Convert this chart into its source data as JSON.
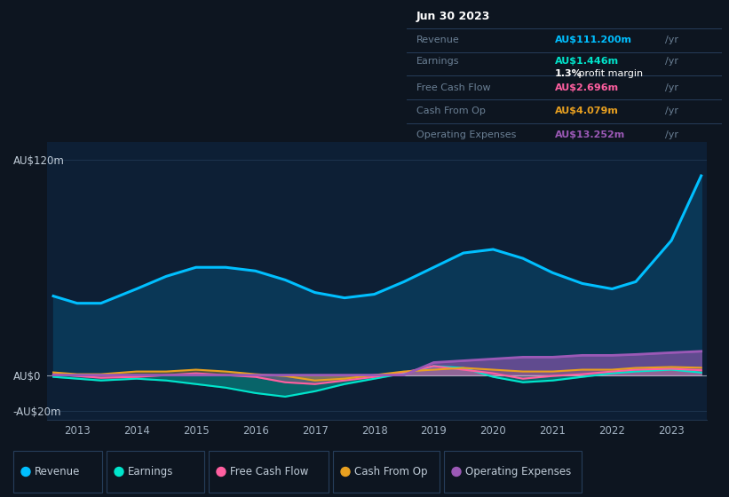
{
  "bg_color": "#0d1520",
  "plot_bg": "#0d1f35",
  "title": "Jun 30 2023",
  "years": [
    2012.6,
    2013.0,
    2013.4,
    2014.0,
    2014.5,
    2015.0,
    2015.5,
    2016.0,
    2016.5,
    2017.0,
    2017.5,
    2018.0,
    2018.5,
    2019.0,
    2019.5,
    2020.0,
    2020.5,
    2021.0,
    2021.5,
    2022.0,
    2022.4,
    2023.0,
    2023.5
  ],
  "revenue": [
    44,
    40,
    40,
    48,
    55,
    60,
    60,
    58,
    53,
    46,
    43,
    45,
    52,
    60,
    68,
    70,
    65,
    57,
    51,
    48,
    52,
    75,
    111
  ],
  "earnings": [
    -1,
    -2,
    -3,
    -2,
    -3,
    -5,
    -7,
    -10,
    -12,
    -9,
    -5,
    -2,
    1,
    5,
    4,
    -1,
    -4,
    -3,
    -1,
    1,
    2,
    3,
    1.4
  ],
  "free_cash_flow": [
    0.5,
    -0.5,
    -1.5,
    -1,
    0,
    1,
    0,
    -1,
    -4,
    -5,
    -3,
    -1,
    1.5,
    5,
    3,
    1,
    -2,
    -0.5,
    0.5,
    2,
    3,
    3.5,
    2.7
  ],
  "cash_from_op": [
    1.5,
    0.5,
    0.5,
    2,
    2,
    3,
    2,
    0.5,
    -0.5,
    -3,
    -2,
    0,
    2,
    3,
    4,
    3,
    2,
    2,
    3,
    3,
    4,
    4.5,
    4.1
  ],
  "operating_expenses": [
    0,
    0,
    0,
    0,
    0,
    0,
    0,
    0,
    0,
    0,
    0,
    0,
    0,
    7,
    8,
    9,
    10,
    10,
    11,
    11,
    11.5,
    12.5,
    13.25
  ],
  "ylim": [
    -25,
    130
  ],
  "ytick_positions": [
    -20,
    0,
    120
  ],
  "ytick_labels": [
    "-AU$20m",
    "AU$0",
    "AU$120m"
  ],
  "xticks": [
    2013,
    2014,
    2015,
    2016,
    2017,
    2018,
    2019,
    2020,
    2021,
    2022,
    2023
  ],
  "revenue_color": "#00bfff",
  "earnings_color": "#00e5cc",
  "free_cash_flow_color": "#ff5fa0",
  "cash_from_op_color": "#e8a020",
  "operating_expenses_color": "#9b59b6",
  "revenue_fill_color": "#0a3a5a",
  "grid_color": "#263d5a",
  "zero_line_color": "#c0c8d0",
  "label_color": "#6a7f94",
  "white": "#ffffff",
  "info_box_bg": "#050d18",
  "info_box": {
    "date": "Jun 30 2023",
    "revenue_label": "Revenue",
    "revenue_value": "AU$111.200m",
    "earnings_label": "Earnings",
    "earnings_value": "AU$1.446m",
    "profit_margin": "1.3%",
    "profit_margin_text": " profit margin",
    "fcf_label": "Free Cash Flow",
    "fcf_value": "AU$2.696m",
    "cash_op_label": "Cash From Op",
    "cash_op_value": "AU$4.079m",
    "opex_label": "Operating Expenses",
    "opex_value": "AU$13.252m"
  },
  "legend": [
    {
      "label": "Revenue",
      "color": "#00bfff"
    },
    {
      "label": "Earnings",
      "color": "#00e5cc"
    },
    {
      "label": "Free Cash Flow",
      "color": "#ff5fa0"
    },
    {
      "label": "Cash From Op",
      "color": "#e8a020"
    },
    {
      "label": "Operating Expenses",
      "color": "#9b59b6"
    }
  ]
}
